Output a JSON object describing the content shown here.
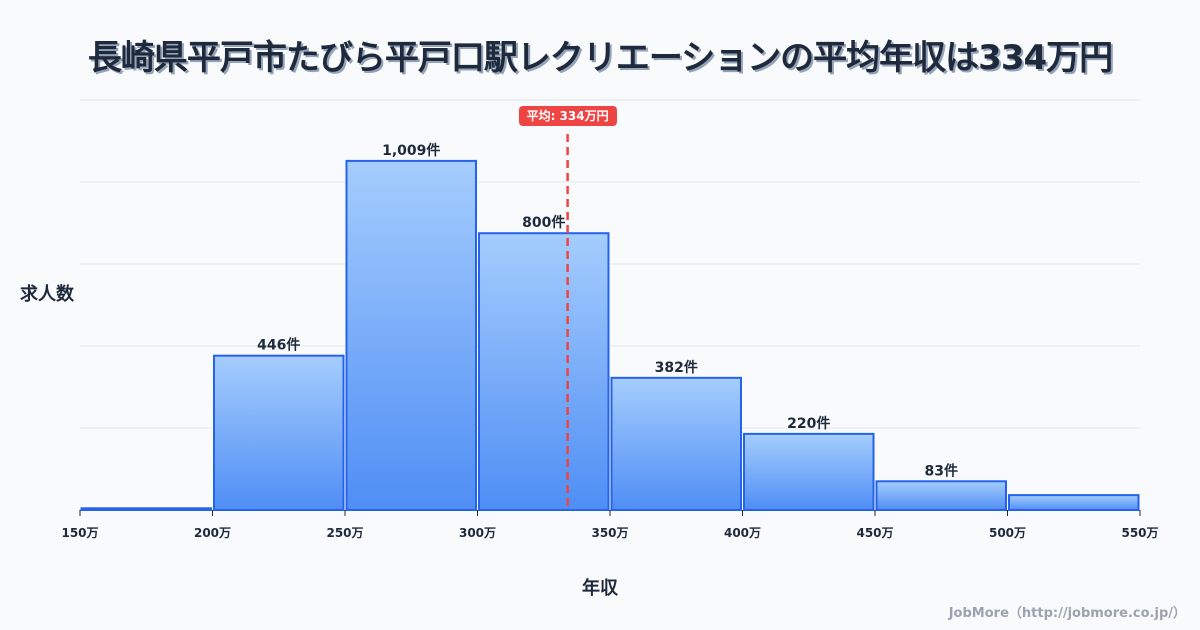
{
  "title": "長崎県平戸市たびら平戸口駅レクリエーションの平均年収は334万円",
  "y_axis_label": "求人数",
  "x_axis_label": "年収",
  "credit": "JobMore（http://jobmore.co.jp/）",
  "average": {
    "label": "平均: 334万円",
    "value": 334,
    "color": "#ef4444"
  },
  "colors": {
    "bar_top": "#a5cdfd",
    "bar_bottom": "#4f8ef5",
    "bar_border": "#2563eb",
    "grid": "#e2e8f0",
    "text": "#1e293b"
  },
  "chart_data": {
    "type": "bar",
    "title": "長崎県平戸市たびら平戸口駅レクリエーションの平均年収は334万円",
    "xlabel": "年収",
    "ylabel": "求人数",
    "categories": [
      "150-200万",
      "200-250万",
      "250-300万",
      "300-350万",
      "350-400万",
      "400-450万",
      "450-500万",
      "500-550万"
    ],
    "bin_edges": [
      150,
      200,
      250,
      300,
      350,
      400,
      450,
      500,
      550
    ],
    "x_tick_labels": [
      "150万",
      "200万",
      "250万",
      "300万",
      "350万",
      "400万",
      "450万",
      "500万",
      "550万"
    ],
    "values": [
      5,
      446,
      1009,
      800,
      382,
      220,
      83,
      43
    ],
    "value_labels": [
      "",
      "446件",
      "1,009件",
      "800件",
      "382件",
      "220件",
      "83件",
      ""
    ],
    "ylim": [
      0,
      1185
    ],
    "grid": true,
    "y_ticks_hidden": true,
    "annotations": [
      {
        "type": "vline",
        "x": 334,
        "label": "平均: 334万円",
        "style": "dashed",
        "color": "#ef4444"
      }
    ]
  }
}
